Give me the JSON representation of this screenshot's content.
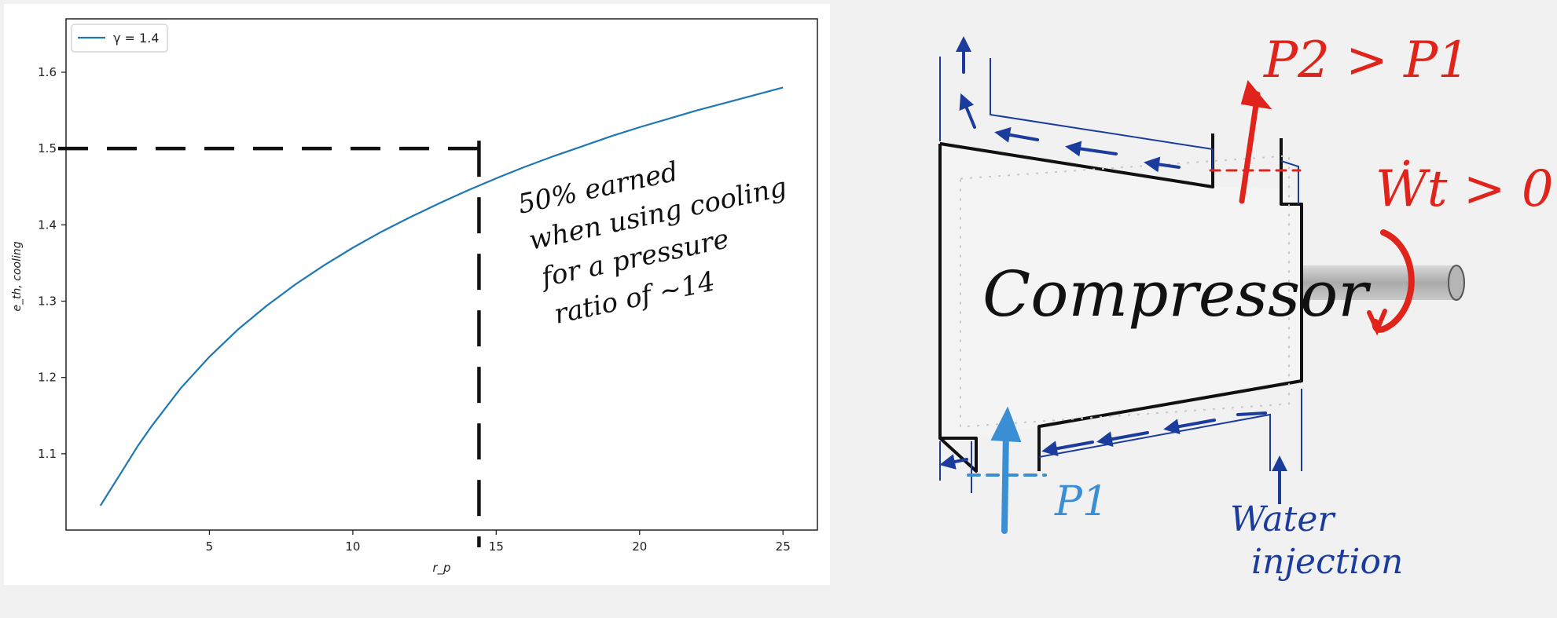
{
  "chart_data": {
    "type": "line",
    "xlabel": "r_p",
    "ylabel": "e_th, cooling",
    "xlim": [
      0,
      26.2
    ],
    "ylim": [
      1.0,
      1.67
    ],
    "xticks": [
      5,
      10,
      15,
      20,
      25
    ],
    "yticks": [
      1.1,
      1.2,
      1.3,
      1.4,
      1.5,
      1.6
    ],
    "grid": false,
    "legend": {
      "placement": "top-left",
      "entries": [
        "γ = 1.4"
      ]
    },
    "series": [
      {
        "name": "γ = 1.4",
        "color": "#1f77b4",
        "x": [
          1.2,
          1.5,
          2,
          2.5,
          3,
          4,
          5,
          6,
          7,
          8,
          9,
          10,
          11,
          12,
          13,
          14,
          15,
          16,
          17,
          18,
          19,
          20,
          21,
          22,
          23,
          24,
          25
        ],
        "y": [
          1.032,
          1.05,
          1.08,
          1.11,
          1.137,
          1.186,
          1.227,
          1.263,
          1.294,
          1.322,
          1.347,
          1.37,
          1.391,
          1.41,
          1.428,
          1.445,
          1.461,
          1.476,
          1.49,
          1.503,
          1.516,
          1.528,
          1.539,
          1.55,
          1.56,
          1.57,
          1.58
        ]
      }
    ],
    "reference_lines": {
      "x": 14.4,
      "y": 1.5,
      "style": "dashed",
      "color": "#111111"
    },
    "annotation": [
      "50% earned",
      "when using cooling",
      "for a pressure",
      "ratio of ~14"
    ]
  },
  "diagram": {
    "title": "Compressor",
    "outlet_label": "P2 > P1",
    "work_label": "Ẇt > 0",
    "inlet_label": "P1",
    "water_label": [
      "Water",
      "injection"
    ],
    "colors": {
      "outlet": "#e0241b",
      "inlet": "#3a8fd4",
      "water": "#1b3c9c",
      "ink": "#111111"
    }
  }
}
